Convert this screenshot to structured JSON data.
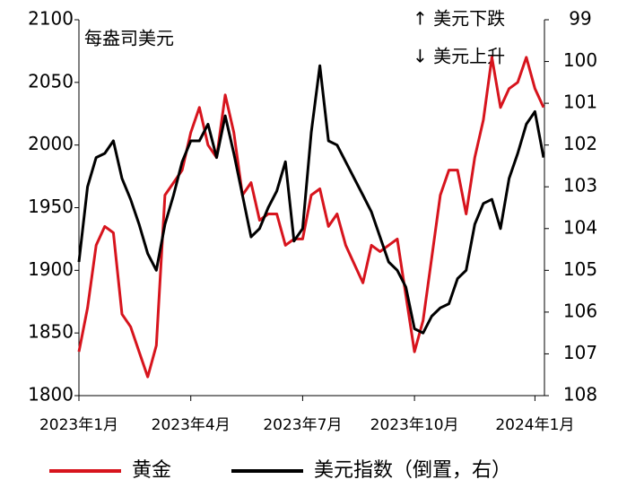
{
  "chart_data": {
    "type": "line",
    "annotations": [
      "每盎司美元",
      "↑ 美元下跌",
      "↓ 美元上升"
    ],
    "categories": [
      "2023年1月",
      null,
      null,
      null,
      null,
      null,
      null,
      null,
      null,
      null,
      null,
      null,
      null,
      "2023年4月",
      null,
      null,
      null,
      null,
      null,
      null,
      null,
      null,
      null,
      null,
      null,
      null,
      "2023年7月",
      null,
      null,
      null,
      null,
      null,
      null,
      null,
      null,
      null,
      null,
      null,
      null,
      "2023年10月",
      null,
      null,
      null,
      null,
      null,
      null,
      null,
      null,
      null,
      null,
      null,
      null,
      null,
      "2024年1月",
      null
    ],
    "series": [
      {
        "name": "黄金",
        "color": "#d7141d",
        "values": [
          1835,
          1870,
          1920,
          1935,
          1930,
          1865,
          1855,
          1835,
          1815,
          1840,
          1960,
          1970,
          1980,
          2010,
          2030,
          2000,
          1990,
          2040,
          2010,
          1960,
          1970,
          1940,
          1945,
          1945,
          1920,
          1925,
          1925,
          1960,
          1965,
          1935,
          1945,
          1920,
          1905,
          1890,
          1920,
          1915,
          1920,
          1925,
          1880,
          1835,
          1860,
          1910,
          1960,
          1980,
          1980,
          1945,
          1990,
          2020,
          2070,
          2030,
          2045,
          2050,
          2070,
          2045,
          2030
        ]
      },
      {
        "name": "美元指数（倒置，右）",
        "color": "#000000",
        "axis": "y2",
        "values": [
          104.8,
          103.0,
          102.3,
          102.2,
          101.9,
          102.8,
          103.3,
          103.9,
          104.6,
          105.0,
          103.9,
          103.2,
          102.4,
          101.9,
          101.9,
          101.5,
          102.3,
          101.3,
          102.2,
          103.2,
          104.2,
          104.0,
          103.5,
          103.1,
          102.4,
          104.3,
          104.0,
          101.7,
          100.1,
          101.9,
          102.0,
          102.4,
          102.8,
          103.2,
          103.6,
          104.2,
          104.8,
          105.0,
          105.4,
          106.4,
          106.5,
          106.1,
          105.9,
          105.8,
          105.2,
          105.0,
          103.9,
          103.4,
          103.3,
          104.0,
          102.8,
          102.2,
          101.5,
          101.2,
          102.3
        ]
      }
    ],
    "ylim": [
      1800,
      2100
    ],
    "yticks": [
      1800,
      1850,
      1900,
      1950,
      2000,
      2050,
      2100
    ],
    "y2lim": [
      108,
      99
    ],
    "y2ticks": [
      99,
      100,
      101,
      102,
      103,
      104,
      105,
      106,
      107,
      108
    ],
    "grid": false
  }
}
